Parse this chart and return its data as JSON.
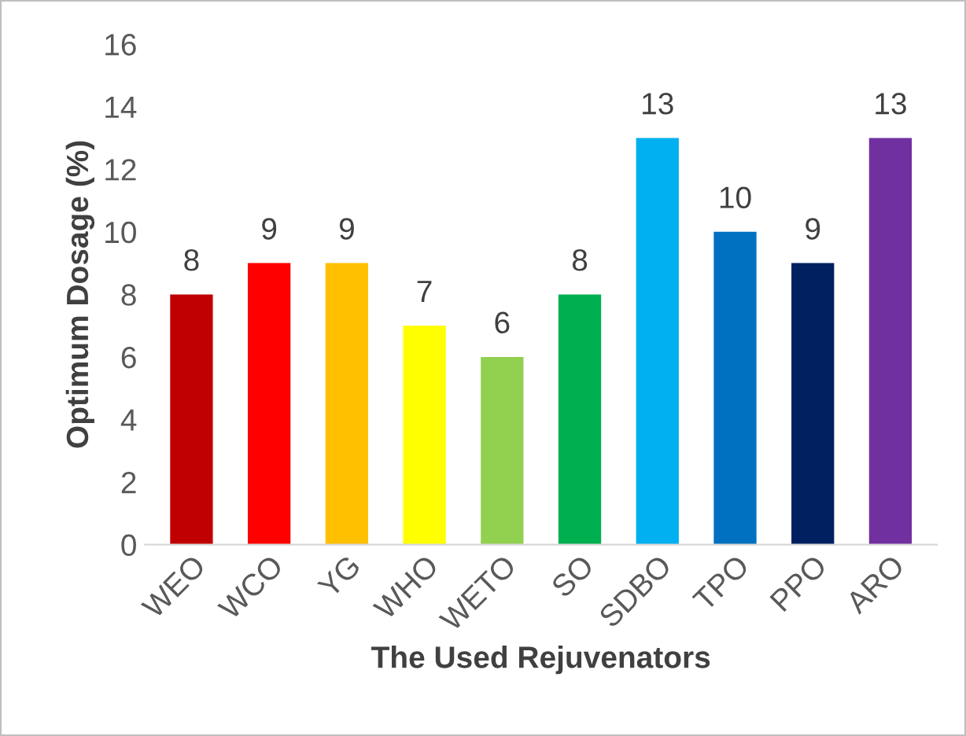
{
  "chart_data": {
    "type": "bar",
    "xlabel": "The Used Rejuvenators",
    "ylabel": "Optimum Dosage (%)",
    "categories": [
      "WEO",
      "WCO",
      "YG",
      "WHO",
      "WETO",
      "SO",
      "SDBO",
      "TPO",
      "PPO",
      "ARO"
    ],
    "values": [
      8,
      9,
      9,
      7,
      6,
      8,
      13,
      10,
      9,
      13
    ],
    "colors": [
      "#c00000",
      "#ff0000",
      "#ffc000",
      "#ffff00",
      "#92d050",
      "#00b050",
      "#00b0f0",
      "#0070c0",
      "#002060",
      "#7030a0"
    ],
    "ylim": [
      0,
      16
    ],
    "yticks": [
      0,
      2,
      4,
      6,
      8,
      10,
      12,
      14,
      16
    ],
    "grid": false,
    "data_labels": true
  }
}
